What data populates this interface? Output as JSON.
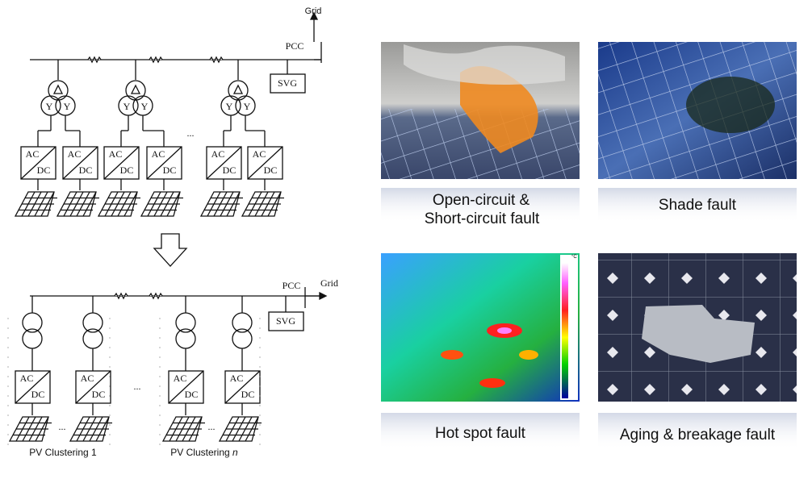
{
  "top_diagram": {
    "grid_label": "Grid",
    "pcc_label": "PCC",
    "svg_label": "SVG",
    "winding_label": "Y",
    "converter_labels": [
      "AC",
      "DC"
    ],
    "ellipsis": "..."
  },
  "bottom_diagram": {
    "grid_label": "Grid",
    "pcc_label": "PCC",
    "svg_label": "SVG",
    "converter_labels": [
      "AC",
      "DC"
    ],
    "ellipsis": "...",
    "clusters": [
      {
        "label": "PV Clustering",
        "index": "1"
      },
      {
        "label": "PV Clustering",
        "index": "n"
      }
    ]
  },
  "faults": [
    {
      "caption": [
        "Open-circuit &",
        "Short-circuit fault"
      ]
    },
    {
      "caption": [
        "Shade fault"
      ]
    },
    {
      "caption": [
        "Hot spot fault"
      ],
      "scale_unit": "°C"
    },
    {
      "caption": [
        "Aging & breakage  fault"
      ]
    }
  ]
}
